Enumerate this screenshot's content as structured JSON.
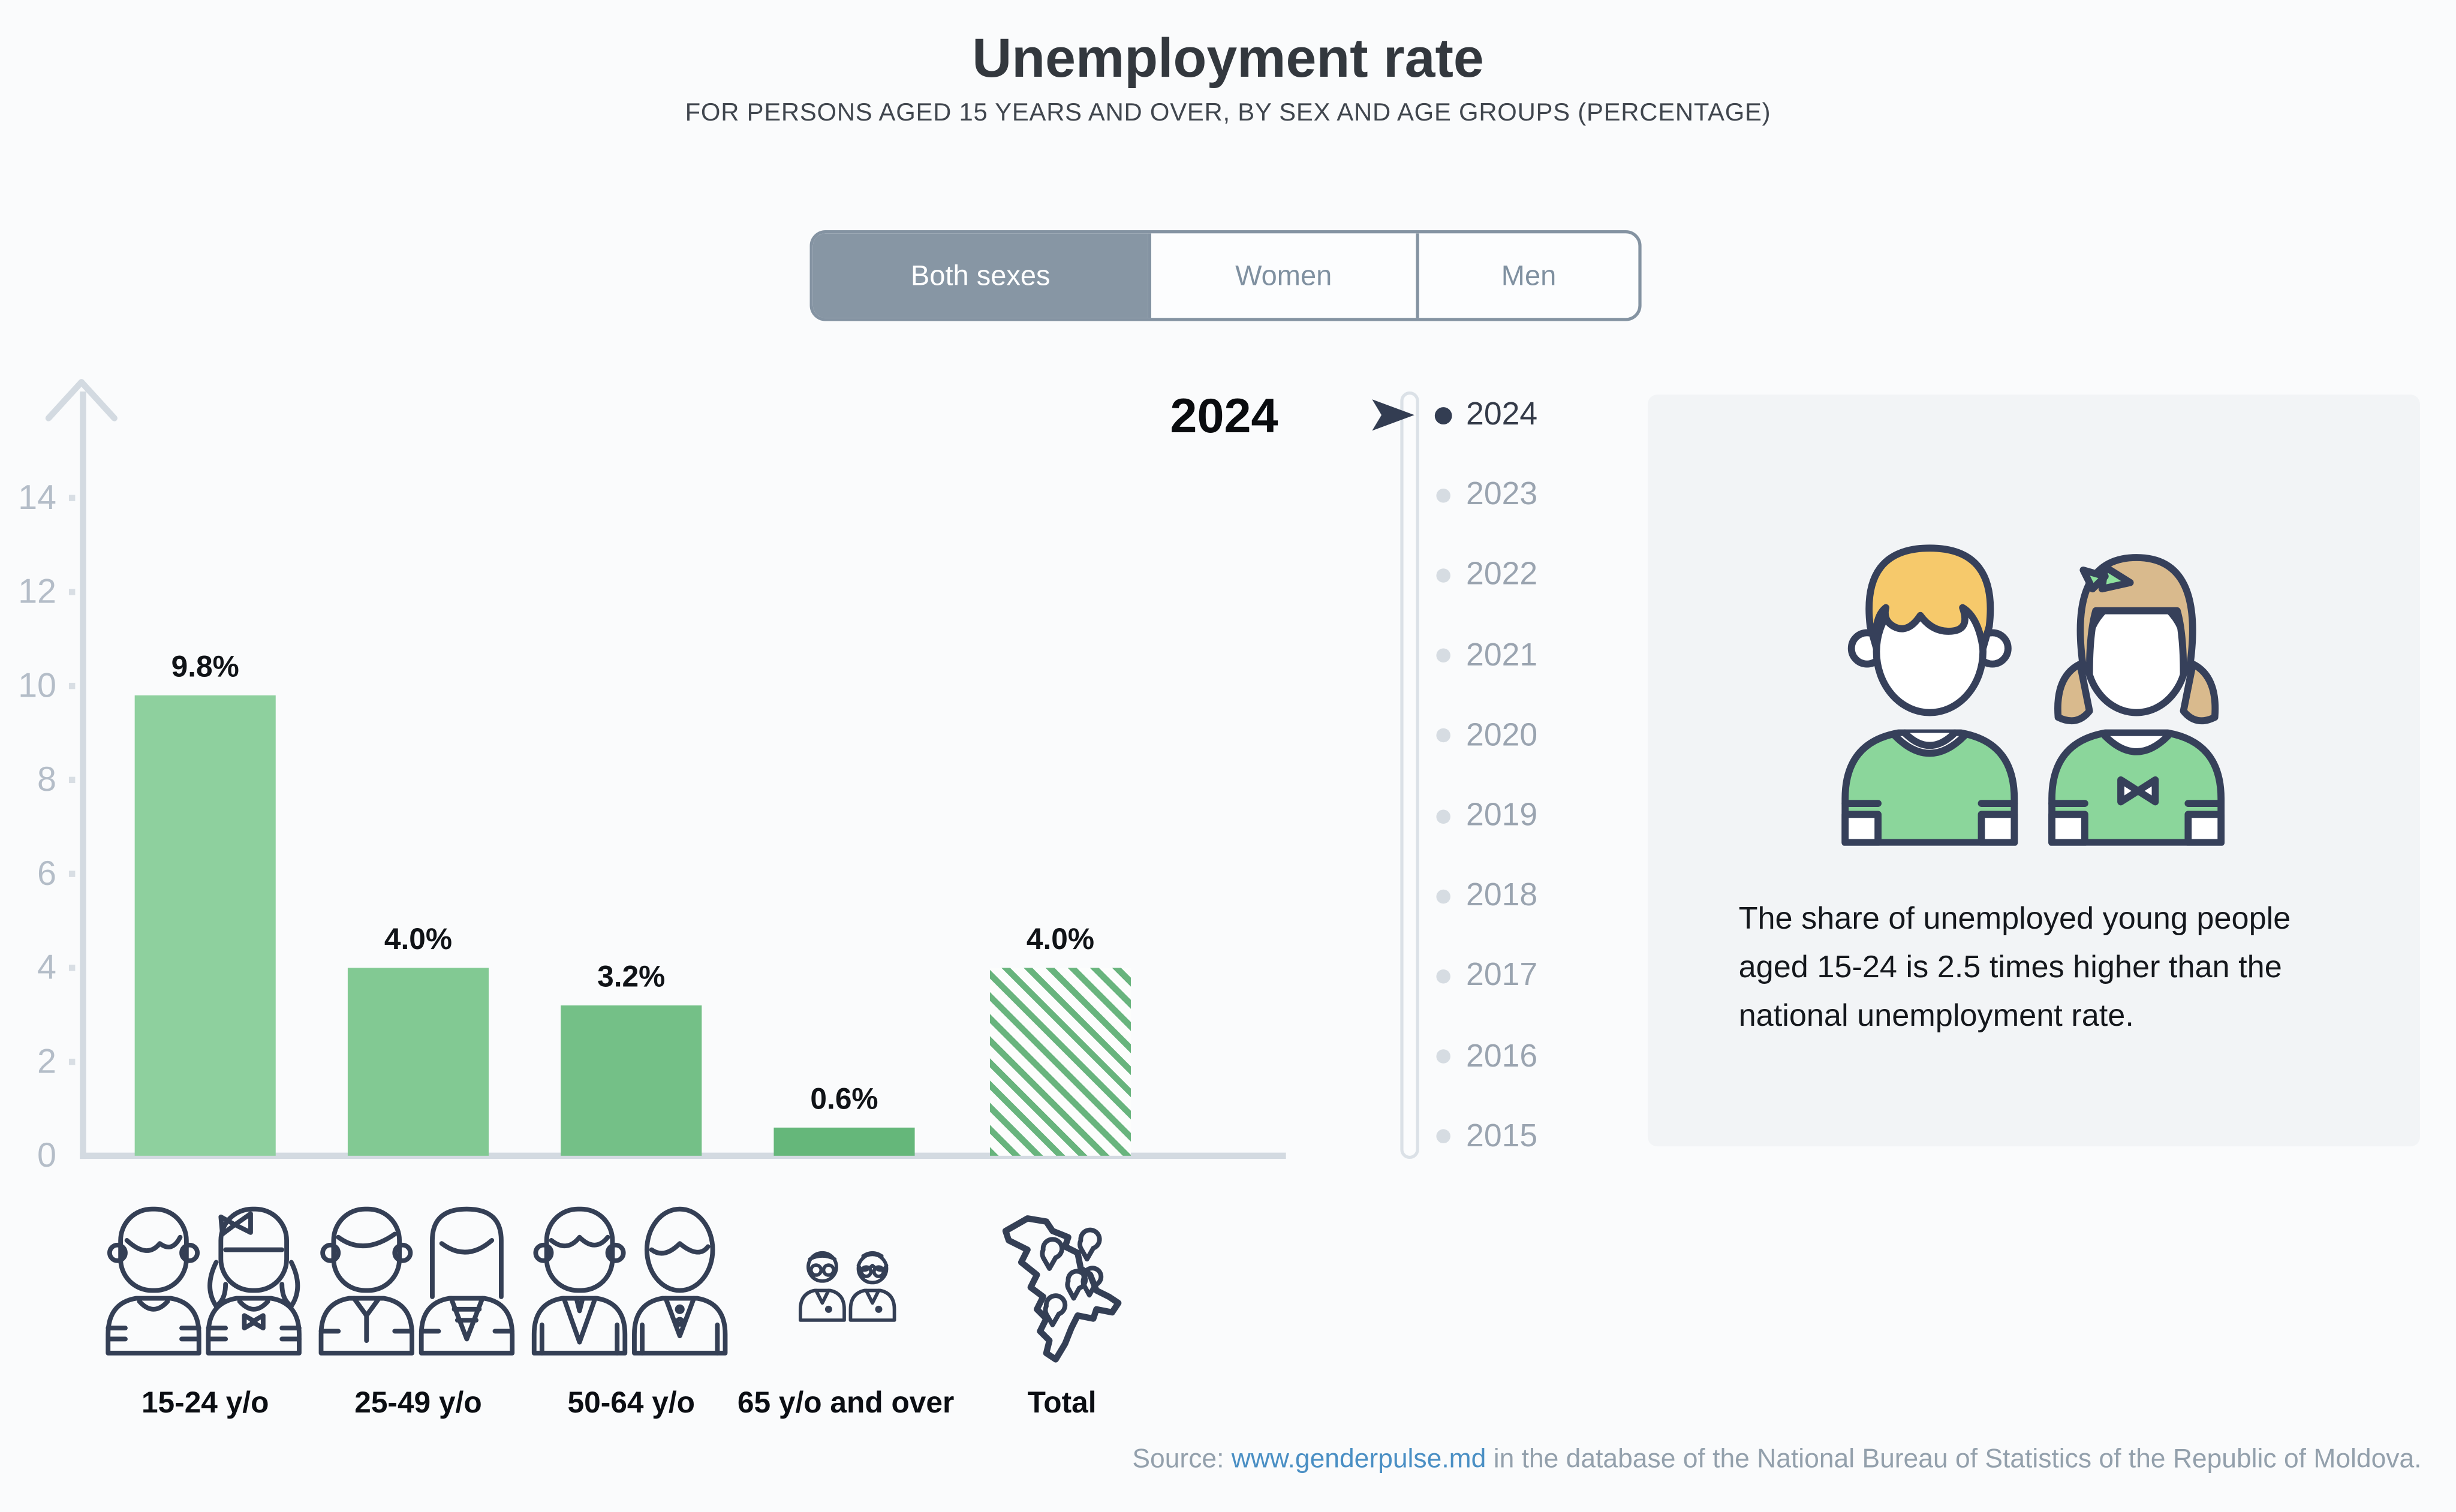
{
  "header": {
    "title": "Unemployment rate",
    "subtitle": "FOR PERSONS AGED 15 YEARS AND OVER, BY SEX AND AGE GROUPS (PERCENTAGE)"
  },
  "tabs": {
    "items": [
      {
        "label": "Both sexes",
        "selected": true
      },
      {
        "label": "Women",
        "selected": false
      },
      {
        "label": "Men",
        "selected": false
      }
    ]
  },
  "chart_data": {
    "type": "bar",
    "title": "2024",
    "categories": [
      "15-24 y/o",
      "25-49 y/o",
      "50-64 y/o",
      "65 y/o and over",
      "Total"
    ],
    "values": [
      9.8,
      4.0,
      3.2,
      0.6,
      4.0
    ],
    "value_labels": [
      "9.8%",
      "4.0%",
      "3.2%",
      "0.6%",
      "4.0%"
    ],
    "xlabel": "",
    "ylabel": "",
    "ylim": [
      0,
      15
    ],
    "y_ticks": [
      0,
      2,
      4,
      6,
      8,
      10,
      12,
      14
    ],
    "grid": false,
    "legend_position": "none",
    "bar_colors": [
      "#8ed09e",
      "#82c993",
      "#74c087",
      "#65b77a",
      "#ffffff"
    ],
    "hatched_bars": [
      4
    ],
    "hatch_color": "#68b47d",
    "category_icons": [
      "young-pair-icon",
      "adult-pair-icon",
      "senior-suit-pair-icon",
      "elderly-pair-icon",
      "moldova-map-icon"
    ]
  },
  "timeline": {
    "years": [
      "2024",
      "2023",
      "2022",
      "2021",
      "2020",
      "2019",
      "2018",
      "2017",
      "2016",
      "2015"
    ],
    "selected_index": 0,
    "selected_year": "2024"
  },
  "info_panel": {
    "illustration": "boy-and-girl-green-shirts",
    "text": "The share of unemployed young people aged 15-24 is 2.5 times higher than the national unemployment rate."
  },
  "source": {
    "prefix": "Source: ",
    "link_text": "www.genderpulse.md",
    "suffix": " in the database of the National Bureau of Statistics of the Republic of Moldova."
  },
  "colors": {
    "page_bg": "#fafbfc",
    "panel_bg": "#f2f4f6",
    "tab_selected_bg": "#8796a4",
    "tab_border": "#8493a2",
    "axis_gray": "#d3dae1",
    "axis_label_gray": "#b4bdc8",
    "dark_navy": "#333d52",
    "year_unselected": "#9aa4b0",
    "year_selected": "#343b49",
    "link_blue": "#4a8fc4",
    "value_label": "#101317"
  }
}
